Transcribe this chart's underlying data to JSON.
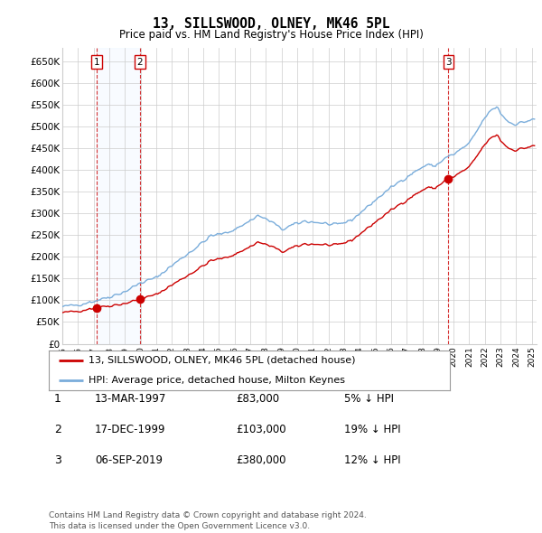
{
  "title": "13, SILLSWOOD, OLNEY, MK46 5PL",
  "subtitle": "Price paid vs. HM Land Registry's House Price Index (HPI)",
  "ylabel_ticks": [
    "£0",
    "£50K",
    "£100K",
    "£150K",
    "£200K",
    "£250K",
    "£300K",
    "£350K",
    "£400K",
    "£450K",
    "£500K",
    "£550K",
    "£600K",
    "£650K"
  ],
  "ytick_values": [
    0,
    50000,
    100000,
    150000,
    200000,
    250000,
    300000,
    350000,
    400000,
    450000,
    500000,
    550000,
    600000,
    650000
  ],
  "ylim": [
    0,
    680000
  ],
  "xlim_start": 1995.0,
  "xlim_end": 2025.3,
  "legend_entries": [
    "13, SILLSWOOD, OLNEY, MK46 5PL (detached house)",
    "HPI: Average price, detached house, Milton Keynes"
  ],
  "legend_colors": [
    "#cc0000",
    "#7aaddb"
  ],
  "sale_points": [
    {
      "year": 1997.19,
      "value": 83000,
      "label": "1"
    },
    {
      "year": 1999.96,
      "value": 103000,
      "label": "2"
    },
    {
      "year": 2019.67,
      "value": 380000,
      "label": "3"
    }
  ],
  "sale_annotations": [
    {
      "label": "1",
      "date": "13-MAR-1997",
      "price": "£83,000",
      "pct": "5% ↓ HPI"
    },
    {
      "label": "2",
      "date": "17-DEC-1999",
      "price": "£103,000",
      "pct": "19% ↓ HPI"
    },
    {
      "label": "3",
      "date": "06-SEP-2019",
      "price": "£380,000",
      "pct": "12% ↓ HPI"
    }
  ],
  "hpi_color": "#7aaddb",
  "price_color": "#cc0000",
  "grid_color": "#cccccc",
  "vline_color": "#cc0000",
  "bg_color": "#ffffff",
  "shade_color": "#ddeeff",
  "footer": "Contains HM Land Registry data © Crown copyright and database right 2024.\nThis data is licensed under the Open Government Licence v3.0.",
  "xtick_years": [
    1995,
    1996,
    1997,
    1998,
    1999,
    2000,
    2001,
    2002,
    2003,
    2004,
    2005,
    2006,
    2007,
    2008,
    2009,
    2010,
    2011,
    2012,
    2013,
    2014,
    2015,
    2016,
    2017,
    2018,
    2019,
    2020,
    2021,
    2022,
    2023,
    2024,
    2025
  ]
}
